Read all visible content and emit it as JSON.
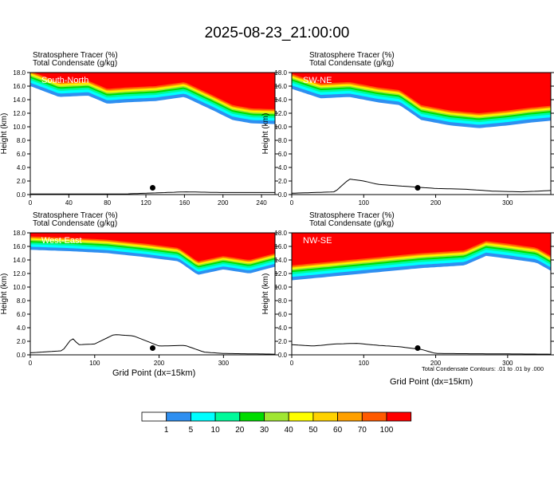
{
  "title": "2025-08-23_21:00:00",
  "colors": {
    "scale": [
      "#ffffff",
      "#2f8ff0",
      "#00ffff",
      "#00fa9a",
      "#00dc00",
      "#a0e632",
      "#ffff00",
      "#ffd200",
      "#ffa000",
      "#ff5a00",
      "#ff0000"
    ],
    "contour": "#000000",
    "terrain": "#000000",
    "marker": "#000000"
  },
  "colorbar": {
    "labels": [
      "1",
      "5",
      "10",
      "20",
      "30",
      "40",
      "50",
      "60",
      "70",
      "100"
    ]
  },
  "panels": [
    {
      "name": "South-North",
      "header_line1": "Stratosphere Tracer   (%)",
      "header_line2": "Total Condensate   (g/kg)",
      "ylabel": "Height (km)",
      "xlabel": "",
      "xticks": [
        "0",
        "40",
        "80",
        "120",
        "160",
        "200",
        "240"
      ],
      "yticks": [
        "0.0",
        "2.0",
        "4.0",
        "6.0",
        "8.0",
        "10.0",
        "12.0",
        "14.0",
        "16.0",
        "18.0"
      ]
    },
    {
      "name": "SW-NE",
      "header_line1": "Stratosphere Tracer   (%)",
      "header_line2": "Total Condensate   (g/kg)",
      "ylabel": "Height (km)",
      "xlabel": "",
      "xticks": [
        "0",
        "100",
        "200",
        "300"
      ],
      "yticks": [
        "0.0",
        "2.0",
        "4.0",
        "6.0",
        "8.0",
        "10.0",
        "12.0",
        "14.0",
        "16.0",
        "18.0"
      ]
    },
    {
      "name": "West-East",
      "header_line1": "Stratosphere Tracer   (%)",
      "header_line2": "Total Condensate   (g/kg)",
      "ylabel": "Height (km)",
      "xlabel": "Grid Point (dx=15km)",
      "xticks": [
        "0",
        "100",
        "200",
        "300"
      ],
      "yticks": [
        "0.0",
        "2.0",
        "4.0",
        "6.0",
        "8.0",
        "10.0",
        "12.0",
        "14.0",
        "16.0",
        "18.0"
      ]
    },
    {
      "name": "NW-SE",
      "header_line1": "Stratosphere Tracer   (%)",
      "header_line2": "Total Condensate   (g/kg)",
      "ylabel": "Height (km)",
      "xlabel": "Grid Point (dx=15km)",
      "note": "Total Condensate Contours: .01 to .01 by .000",
      "xticks": [
        "0",
        "100",
        "200",
        "300"
      ],
      "yticks": [
        "0.0",
        "2.0",
        "4.0",
        "6.0",
        "8.0",
        "10.0",
        "12.0",
        "14.0",
        "16.0",
        "18.0"
      ]
    }
  ],
  "chart_data": [
    {
      "type": "heatmap",
      "title": "South-North",
      "xlabel": "",
      "ylabel": "Height (km)",
      "xlim": [
        0,
        254
      ],
      "ylim": [
        0,
        18
      ],
      "contour_levels_pct": [
        1,
        5,
        10,
        20,
        30,
        40,
        50,
        60,
        70,
        100
      ],
      "tropopause_km": {
        "x": [
          0,
          30,
          60,
          80,
          100,
          130,
          160,
          190,
          210,
          230,
          254
        ],
        "y": [
          16,
          14.4,
          14.6,
          13.4,
          13.6,
          13.8,
          14.4,
          12.4,
          11.0,
          10.5,
          10.4
        ]
      },
      "tracer_band_width_km": 2.0,
      "terrain_km": {
        "x": [
          0,
          100,
          120,
          160,
          200,
          254
        ],
        "y": [
          0.1,
          0.1,
          0.2,
          0.4,
          0.3,
          0.3
        ]
      },
      "marker": {
        "x": 127,
        "y": 1.0
      }
    },
    {
      "type": "heatmap",
      "title": "SW-NE",
      "xlabel": "",
      "ylabel": "Height (km)",
      "xlim": [
        0,
        360
      ],
      "ylim": [
        0,
        18
      ],
      "contour_levels_pct": [
        1,
        5,
        10,
        20,
        30,
        40,
        50,
        60,
        70,
        100
      ],
      "tropopause_km": {
        "x": [
          0,
          40,
          80,
          120,
          150,
          180,
          220,
          260,
          300,
          330,
          360
        ],
        "y": [
          15.6,
          14.2,
          14.4,
          13.6,
          13.2,
          11.0,
          10.2,
          9.8,
          10.2,
          10.6,
          10.9
        ]
      },
      "tracer_band_width_km": 2.0,
      "terrain_km": {
        "x": [
          0,
          60,
          80,
          100,
          120,
          160,
          200,
          240,
          280,
          320,
          360
        ],
        "y": [
          0.2,
          0.4,
          2.3,
          2.0,
          1.5,
          1.2,
          0.9,
          0.8,
          0.5,
          0.4,
          0.6
        ]
      },
      "marker": {
        "x": 175,
        "y": 1.0
      }
    },
    {
      "type": "heatmap",
      "title": "West-East",
      "xlabel": "Grid Point (dx=15km)",
      "ylabel": "Height (km)",
      "xlim": [
        0,
        380
      ],
      "ylim": [
        0,
        18
      ],
      "contour_levels_pct": [
        1,
        5,
        10,
        20,
        30,
        40,
        50,
        60,
        70,
        100
      ],
      "tropopause_km": {
        "x": [
          0,
          60,
          120,
          180,
          230,
          260,
          300,
          340,
          380
        ],
        "y": [
          15.5,
          15.3,
          15.0,
          14.4,
          13.8,
          11.8,
          12.6,
          12.0,
          13.0
        ]
      },
      "tracer_band_width_km": 1.8,
      "terrain_km": {
        "x": [
          0,
          50,
          65,
          75,
          100,
          130,
          160,
          200,
          240,
          270,
          300,
          380
        ],
        "y": [
          0.3,
          0.6,
          2.5,
          1.5,
          1.6,
          3.0,
          2.8,
          1.3,
          1.4,
          0.4,
          0.2,
          0.1
        ]
      },
      "marker": {
        "x": 190,
        "y": 1.0
      }
    },
    {
      "type": "heatmap",
      "title": "NW-SE",
      "xlabel": "Grid Point (dx=15km)",
      "ylabel": "Height (km)",
      "xlim": [
        0,
        360
      ],
      "ylim": [
        0,
        18
      ],
      "contour_levels_pct": [
        1,
        5,
        10,
        20,
        30,
        40,
        50,
        60,
        70,
        100
      ],
      "tropopause_km": {
        "x": [
          0,
          60,
          120,
          180,
          210,
          240,
          270,
          300,
          340,
          360
        ],
        "y": [
          11.0,
          11.6,
          12.2,
          12.8,
          13.0,
          13.2,
          14.6,
          14.2,
          13.6,
          12.4
        ]
      },
      "tracer_band_width_km": 2.0,
      "terrain_km": {
        "x": [
          0,
          30,
          60,
          90,
          120,
          150,
          180,
          200,
          360
        ],
        "y": [
          1.5,
          1.3,
          1.6,
          1.7,
          1.4,
          1.2,
          0.8,
          0.2,
          0.1
        ]
      },
      "marker": {
        "x": 175,
        "y": 1.0
      }
    }
  ]
}
